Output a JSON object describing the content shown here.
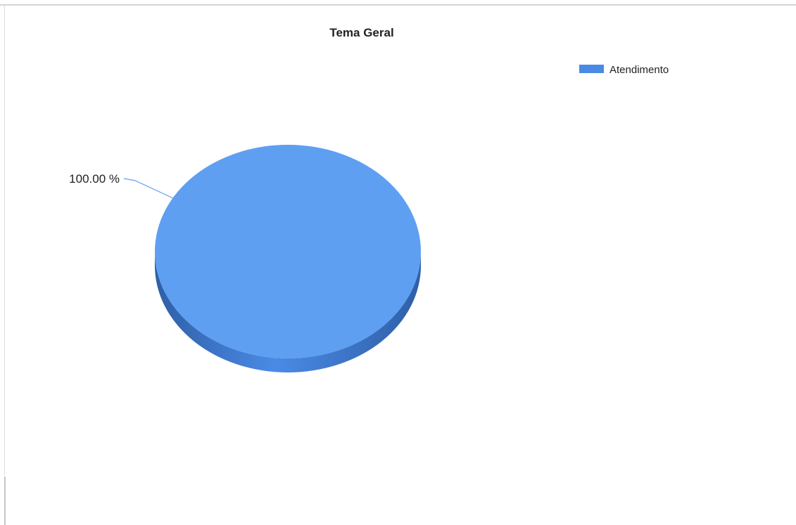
{
  "chart_data": {
    "type": "pie",
    "style": "3d",
    "title": "Tema Geral",
    "slices": [
      {
        "label": "Atendimento",
        "value": 100.0,
        "display": "100.00 %",
        "color": "#5f9ff1",
        "side_color": "#3c6fb8"
      }
    ],
    "legend": {
      "position": "top-right",
      "entries": [
        "Atendimento"
      ]
    }
  }
}
